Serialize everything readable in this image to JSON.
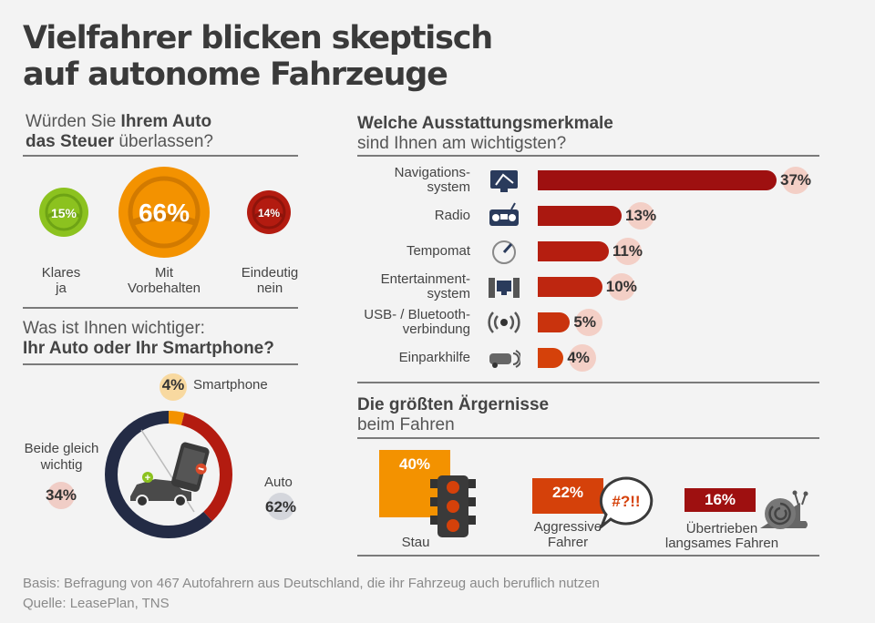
{
  "title_line1": "Vielfahrer blicken skeptisch",
  "title_line2": "auf autonome Fahrzeuge",
  "section1": {
    "line1_pre": "Würden Sie ",
    "line1_bold": "Ihrem Auto",
    "line2_bold": "das Steuer",
    "line2_post": " überlassen?",
    "options": [
      {
        "pct": "15%",
        "label1": "Klares",
        "label2": "ja",
        "color": "#8cc21f"
      },
      {
        "pct": "66%",
        "label1": "Mit",
        "label2": "Vorbehalten",
        "color": "#f39200"
      },
      {
        "pct": "14%",
        "label1": "Eindeutig",
        "label2": "nein",
        "color": "#b31b10"
      }
    ]
  },
  "section2": {
    "line1": "Was ist Ihnen wichtiger:",
    "line2": "Ihr Auto oder Ihr Smartphone?",
    "smartphone_label": "Smartphone",
    "smartphone_pct": "4%",
    "both_label1": "Beide gleich",
    "both_label2": "wichtig",
    "both_pct": "34%",
    "auto_label": "Auto",
    "auto_pct": "62%"
  },
  "section3": {
    "line1": "Welche Ausstattungsmerkmale",
    "line2": "sind Ihnen am wichtigsten?"
  },
  "section4": {
    "line1": "Die größten Ärgernisse",
    "line2": "beim Fahren",
    "items": [
      {
        "pct": "40%",
        "label1": "Stau",
        "label2": ""
      },
      {
        "pct": "22%",
        "label1": "Aggressive",
        "label2": "Fahrer",
        "bubble": "#?!!"
      },
      {
        "pct": "16%",
        "label1": "Übertrieben",
        "label2": "langsames Fahren"
      }
    ]
  },
  "footer_line1": "Basis: Befragung von 467 Autofahrern aus Deutschland, die ihr Fahrzeug auch beruflich nutzen",
  "footer_line2": "Quelle: LeasePlan, TNS",
  "chart_data": [
    {
      "type": "pie",
      "title": "Würden Sie Ihrem Auto das Steuer überlassen?",
      "categories": [
        "Klares ja",
        "Mit Vorbehalten",
        "Eindeutig nein"
      ],
      "values": [
        15,
        66,
        14
      ]
    },
    {
      "type": "pie",
      "title": "Was ist Ihnen wichtiger: Ihr Auto oder Ihr Smartphone?",
      "categories": [
        "Smartphone",
        "Beide gleich wichtig",
        "Auto"
      ],
      "values": [
        4,
        34,
        62
      ],
      "colors": [
        "#f39200",
        "#b31b10",
        "#232b45"
      ]
    },
    {
      "type": "bar",
      "title": "Welche Ausstattungsmerkmale sind Ihnen am wichtigsten?",
      "categories": [
        "Navigations-system",
        "Radio",
        "Tempomat",
        "Entertainment-system",
        "USB- / Bluetooth-verbindung",
        "Einparkhilfe"
      ],
      "label_lines": [
        [
          "Navigations-",
          "system"
        ],
        [
          "Radio"
        ],
        [
          "Tempomat"
        ],
        [
          "Entertainment-",
          "system"
        ],
        [
          "USB- / Bluetooth-",
          "verbindung"
        ],
        [
          "Einparkhilfe"
        ]
      ],
      "icons": [
        "navigation-icon",
        "radio-icon",
        "speedometer-icon",
        "entertainment-icon",
        "wireless-icon",
        "parking-sensor-icon"
      ],
      "values": [
        37,
        13,
        11,
        10,
        5,
        4
      ],
      "unit": "%"
    },
    {
      "type": "bar",
      "title": "Die größten Ärgernisse beim Fahren",
      "categories": [
        "Stau",
        "Aggressive Fahrer",
        "Übertrieben langsames Fahren"
      ],
      "values": [
        40,
        22,
        16
      ],
      "colors": [
        "#f39200",
        "#d5410a",
        "#9e1010"
      ],
      "unit": "%"
    }
  ]
}
